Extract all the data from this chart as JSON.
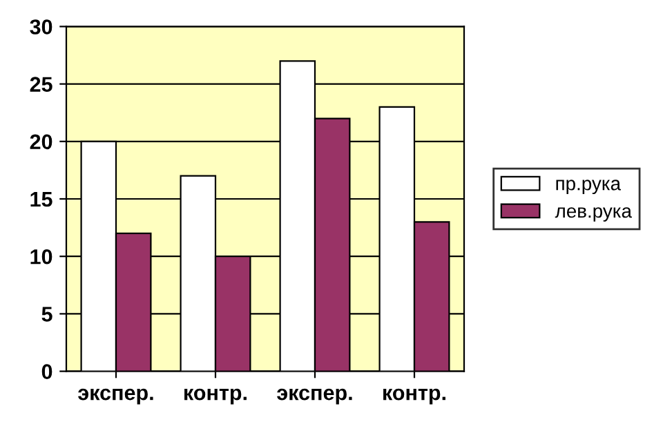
{
  "chart_data": {
    "type": "bar",
    "categories": [
      "экспер.",
      "контр.",
      "экспер.",
      "контр."
    ],
    "series": [
      {
        "name": "пр.рука",
        "color": "#ffffff",
        "values": [
          20,
          17,
          27,
          23
        ]
      },
      {
        "name": "лев.рука",
        "color": "#993366",
        "values": [
          12,
          10,
          22,
          13
        ]
      }
    ],
    "ylim": [
      0,
      30
    ],
    "yticks": [
      0,
      5,
      10,
      15,
      20,
      25,
      30
    ],
    "grid": "y",
    "legend": "right"
  }
}
